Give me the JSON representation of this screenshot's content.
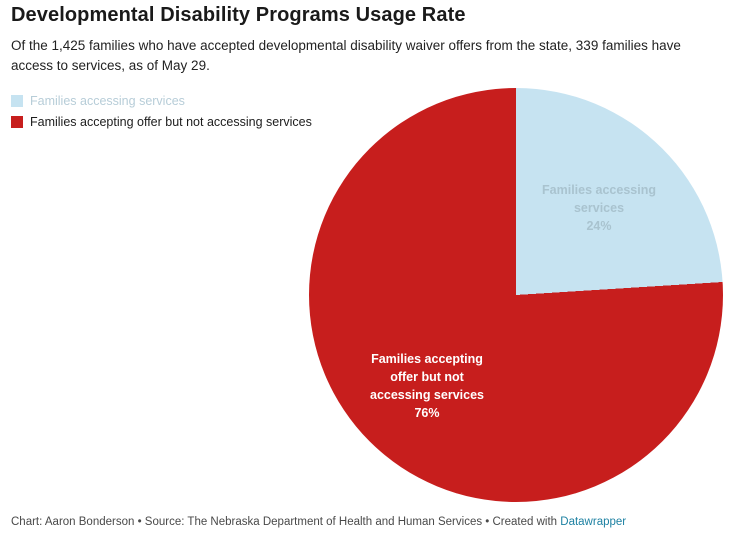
{
  "header": {
    "title": "Developmental Disability Programs Usage Rate",
    "subtitle": "Of the 1,425 families who have accepted developmental disability waiver offers from the state, 339 families have access to services, as of May 29."
  },
  "legend": {
    "items": [
      {
        "label": "Families accessing services",
        "color": "#c6e3f1",
        "text_color": "#b7cdd8"
      },
      {
        "label": "Families accepting offer but not accessing services",
        "color": "#c71e1d",
        "text_color": "#1d1d1d"
      }
    ]
  },
  "chart_data": {
    "type": "pie",
    "title": "Developmental Disability Programs Usage Rate",
    "subtitle": "Of the 1,425 families who have accepted developmental disability waiver offers from the state, 339 families have access to services, as of May 29.",
    "slices": [
      {
        "label": "Families accessing services",
        "value": 24,
        "percent_label": "24%",
        "color": "#c6e3f1",
        "pie_label": "Families accessing\nservices\n24%",
        "label_color": "#a9c3cf"
      },
      {
        "label": "Families accepting offer but not accessing services",
        "value": 76,
        "percent_label": "76%",
        "color": "#c71e1d",
        "pie_label": "Families accepting\noffer but not\naccessing services\n76%",
        "label_color": "#ffffff"
      }
    ],
    "start_angle_deg": 0,
    "direction": "clockwise",
    "legend_position": "top-left",
    "total_families": 1425,
    "families_with_access": 339,
    "as_of": "May 29"
  },
  "footer": {
    "text": "Chart: Aaron Bonderson • Source: The Nebraska Department of Health and Human Services • Created with ",
    "link_label": "Datawrapper",
    "link_color": "#1d81a2"
  }
}
